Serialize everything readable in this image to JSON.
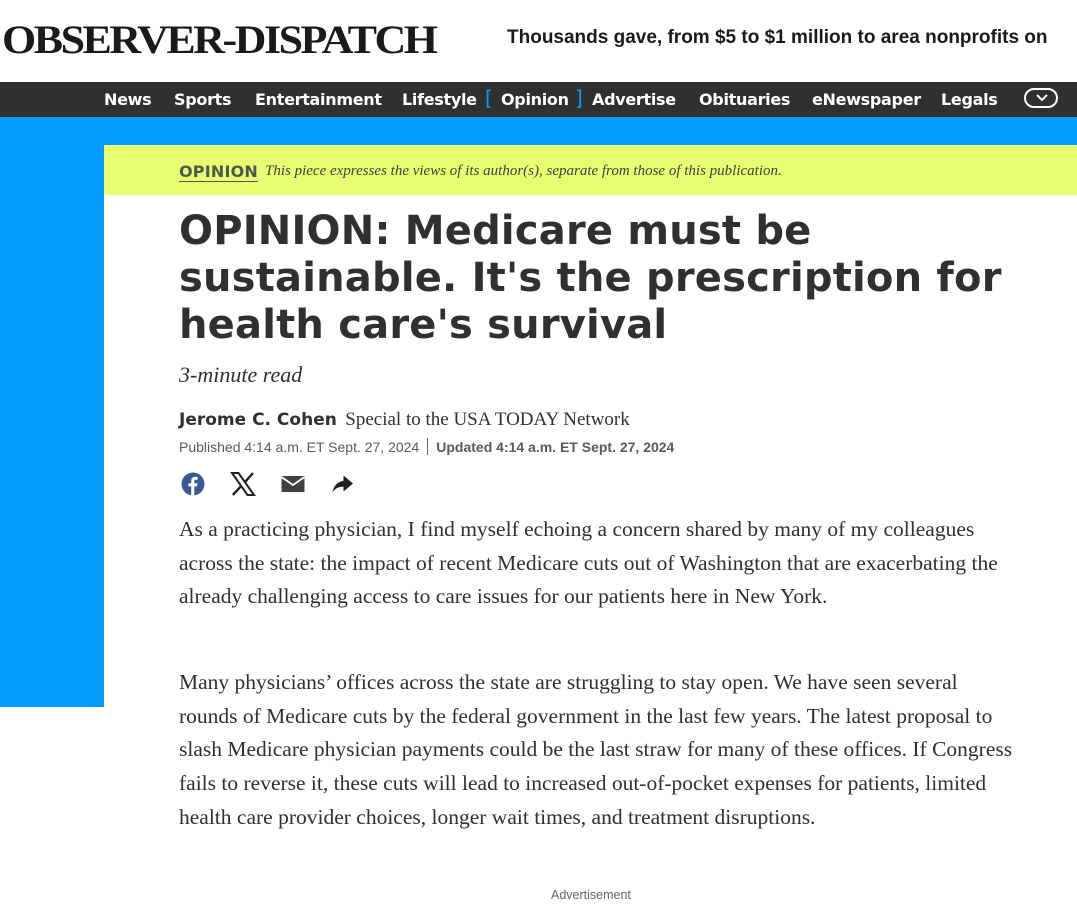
{
  "masthead": {
    "logo": "Observer-Dispatch",
    "ticker": "Thousands gave, from $5 to $1 million to area nonprofits on"
  },
  "nav": {
    "items": [
      "News",
      "Sports",
      "Entertainment",
      "Lifestyle",
      "Opinion",
      "Advertise",
      "Obituaries",
      "eNewspaper",
      "Legals"
    ],
    "active": "Opinion",
    "toggle_icon": "chevron-down-icon"
  },
  "banner": {
    "label": "OPINION",
    "description": "This piece expresses the views of its author(s), separate from those of this publication."
  },
  "article": {
    "headline": "OPINION: Medicare must be sustainable. It's the prescription for health care's survival",
    "read_time": "3-minute read",
    "author": "Jerome C. Cohen",
    "affiliation": "Special to the USA TODAY Network",
    "published": "Published 4:14 a.m. ET Sept. 27, 2024",
    "updated": "Updated 4:14 a.m. ET Sept. 27, 2024",
    "share_icons": [
      "facebook-icon",
      "x-icon",
      "email-icon",
      "share-arrow-icon"
    ],
    "paragraphs": [
      "As a practicing physician, I find myself echoing a concern shared by many of my colleagues across the state: the impact of recent Medicare cuts out of Washington that are exacerbating the already challenging access to care issues for our patients here in New York.",
      "Many physicians’ offices across the state are struggling to stay open.  We have seen several rounds of Medicare cuts by the federal government in the last few years. The latest proposal to slash Medicare physician payments could be the last straw for many of these offices. If Congress fails to reverse it, these cuts will lead to increased out-of-pocket expenses for patients, limited health care provider choices, longer wait times, and treatment disruptions."
    ]
  },
  "advertisement_label": "Advertisement",
  "colors": {
    "nav_bg": "#303030",
    "accent_blue": "#009bff",
    "banner_yellow": "#e9ff70",
    "text": "#303030",
    "facebook_blue": "#3b5998"
  }
}
